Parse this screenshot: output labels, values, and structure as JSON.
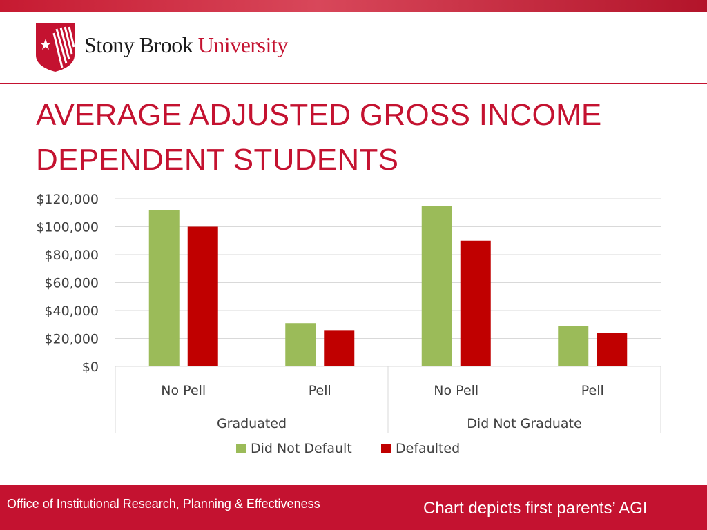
{
  "brand": {
    "name_part1": "Stony Brook",
    "name_part2": "University",
    "logo_icon": "star-shield-icon"
  },
  "slide": {
    "title_line1": "AVERAGE ADJUSTED GROSS INCOME",
    "title_line2": "DEPENDENT STUDENTS"
  },
  "footer": {
    "left_text": "Office of Institutional Research, Planning & Effectiveness",
    "right_text": "Chart depicts first parents’ AGI"
  },
  "colors": {
    "brand_red": "#c41230",
    "did_not_default": "#9bbb59",
    "defaulted": "#c00000"
  },
  "chart_data": {
    "type": "bar",
    "y_ticks": [
      "$0",
      "$20,000",
      "$40,000",
      "$60,000",
      "$80,000",
      "$100,000",
      "$120,000"
    ],
    "ylim": [
      0,
      120000
    ],
    "grid": true,
    "legend_position": "bottom",
    "groups": [
      "Graduated",
      "Did Not Graduate"
    ],
    "categories": [
      "No Pell",
      "Pell",
      "No Pell",
      "Pell"
    ],
    "series": [
      {
        "name": "Did Not Default",
        "values": [
          112000,
          31000,
          115000,
          29000
        ]
      },
      {
        "name": "Defaulted",
        "values": [
          100000,
          26000,
          90000,
          24000
        ]
      }
    ]
  }
}
